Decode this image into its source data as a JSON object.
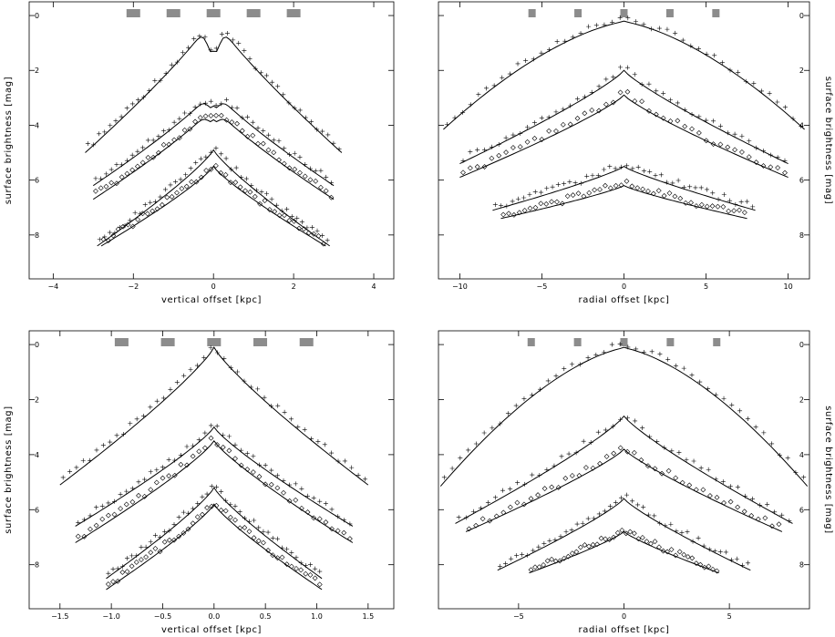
{
  "chart_data": [
    {
      "type": "scatter",
      "panel": "top-left",
      "xlabel": "vertical offset [kpc]",
      "ylabel": "surface brightness [mag]",
      "xlim": [
        -4.6,
        4.5
      ],
      "ylim": [
        9.6,
        -0.5
      ],
      "y_reversed": true,
      "xticks": [
        -4,
        -2,
        0,
        2,
        4
      ],
      "yticks": [
        0,
        2,
        4,
        6,
        8
      ],
      "xtick_labels": [
        "−4",
        "−2",
        "0",
        "2",
        "4"
      ],
      "ytick_labels": [
        "0",
        "2",
        "4",
        "6",
        "8"
      ],
      "ylabel_side": "left",
      "region_markers": [
        -2,
        -1,
        0,
        1,
        2
      ],
      "profiles": [
        {
          "offset": 0,
          "shape": "double",
          "halfwidth": 3.2,
          "side_mag": 5.0,
          "dip": 1.3,
          "marker": "plus"
        },
        {
          "offset": 2.7,
          "shape": "double",
          "halfwidth": 3.0,
          "side_mag": 3.5,
          "dip": 0.6,
          "marker": "plus"
        },
        {
          "offset": 3.3,
          "shape": "double",
          "halfwidth": 3.0,
          "side_mag": 3.4,
          "dip": 0.5,
          "marker": "diamond"
        },
        {
          "offset": 4.9,
          "shape": "single",
          "halfwidth": 2.9,
          "side_mag": 3.5,
          "dip": 0,
          "marker": "plus"
        },
        {
          "offset": 5.5,
          "shape": "single",
          "halfwidth": 2.8,
          "side_mag": 2.9,
          "dip": 0,
          "marker": "diamond"
        }
      ]
    },
    {
      "type": "scatter",
      "panel": "top-right",
      "xlabel": "radial offset [kpc]",
      "ylabel": "surface brightness [mag]",
      "xlim": [
        -11.3,
        11.3
      ],
      "ylim": [
        9.6,
        -0.5
      ],
      "y_reversed": true,
      "xticks": [
        -10,
        -5,
        0,
        5,
        10
      ],
      "yticks": [
        0,
        2,
        4,
        6,
        8
      ],
      "xtick_labels": [
        "−10",
        "−5",
        "0",
        "5",
        "10"
      ],
      "ytick_labels": [
        "0",
        "2",
        "4",
        "6",
        "8"
      ],
      "ylabel_side": "right",
      "region_markers": [
        -5.6,
        -2.8,
        0,
        2.8,
        5.6
      ],
      "profiles": [
        {
          "offset": 0.2,
          "shape": "disk",
          "halfwidth": 11.0,
          "side_mag": 3.6,
          "dip": 0,
          "marker": "plus"
        },
        {
          "offset": 2.0,
          "shape": "single",
          "halfwidth": 10.0,
          "side_mag": 3.4,
          "dip": 0,
          "marker": "plus"
        },
        {
          "offset": 2.9,
          "shape": "single",
          "halfwidth": 10.0,
          "side_mag": 3.0,
          "dip": 0,
          "marker": "diamond"
        },
        {
          "offset": 5.5,
          "shape": "single",
          "halfwidth": 8.0,
          "side_mag": 1.6,
          "dip": 0,
          "marker": "plus"
        },
        {
          "offset": 6.2,
          "shape": "single",
          "halfwidth": 7.5,
          "side_mag": 1.2,
          "dip": 0,
          "marker": "diamond"
        }
      ]
    },
    {
      "type": "scatter",
      "panel": "bottom-left",
      "xlabel": "vertical offset [kpc]",
      "ylabel": "surface brightness [mag]",
      "xlim": [
        -1.8,
        1.75
      ],
      "ylim": [
        9.6,
        -0.5
      ],
      "y_reversed": true,
      "xticks": [
        -1.5,
        -1.0,
        -0.5,
        0.0,
        0.5,
        1.0,
        1.5
      ],
      "yticks": [
        0,
        2,
        4,
        6,
        8
      ],
      "xtick_labels": [
        "−1.5",
        "−1.0",
        "−0.5",
        "0.0",
        "0.5",
        "1.0",
        "1.5"
      ],
      "ytick_labels": [
        "0",
        "2",
        "4",
        "6",
        "8"
      ],
      "ylabel_side": "left",
      "region_markers": [
        -0.9,
        -0.45,
        0,
        0.45,
        0.9
      ],
      "profiles": [
        {
          "offset": 0.1,
          "shape": "single",
          "halfwidth": 1.5,
          "side_mag": 5.0,
          "dip": 0,
          "marker": "plus"
        },
        {
          "offset": 3.0,
          "shape": "single",
          "halfwidth": 1.35,
          "side_mag": 3.6,
          "dip": 0,
          "marker": "plus"
        },
        {
          "offset": 3.5,
          "shape": "single",
          "halfwidth": 1.35,
          "side_mag": 3.7,
          "dip": 0,
          "marker": "diamond"
        },
        {
          "offset": 5.2,
          "shape": "single",
          "halfwidth": 1.05,
          "side_mag": 3.3,
          "dip": 0,
          "marker": "plus"
        },
        {
          "offset": 5.8,
          "shape": "single",
          "halfwidth": 1.05,
          "side_mag": 3.1,
          "dip": 0,
          "marker": "diamond"
        }
      ]
    },
    {
      "type": "scatter",
      "panel": "bottom-right",
      "xlabel": "radial offset [kpc]",
      "ylabel": "surface brightness [mag]",
      "xlim": [
        -8.8,
        8.8
      ],
      "ylim": [
        9.6,
        -0.5
      ],
      "y_reversed": true,
      "xticks": [
        -5,
        0,
        5
      ],
      "yticks": [
        0,
        2,
        4,
        6,
        8
      ],
      "xtick_labels": [
        "−5",
        "0",
        "5"
      ],
      "ytick_labels": [
        "0",
        "2",
        "4",
        "6",
        "8"
      ],
      "ylabel_side": "right",
      "region_markers": [
        -4.4,
        -2.2,
        0,
        2.2,
        4.4
      ],
      "profiles": [
        {
          "offset": 0.1,
          "shape": "disk",
          "halfwidth": 8.7,
          "side_mag": 4.7,
          "dip": 0,
          "marker": "plus"
        },
        {
          "offset": 2.6,
          "shape": "single",
          "halfwidth": 8.0,
          "side_mag": 3.9,
          "dip": 0,
          "marker": "plus"
        },
        {
          "offset": 3.8,
          "shape": "single",
          "halfwidth": 7.5,
          "side_mag": 3.0,
          "dip": 0,
          "marker": "diamond"
        },
        {
          "offset": 5.6,
          "shape": "single",
          "halfwidth": 6.0,
          "side_mag": 2.6,
          "dip": 0,
          "marker": "plus"
        },
        {
          "offset": 6.8,
          "shape": "single",
          "halfwidth": 4.5,
          "side_mag": 1.5,
          "dip": 0,
          "marker": "diamond"
        }
      ]
    }
  ]
}
